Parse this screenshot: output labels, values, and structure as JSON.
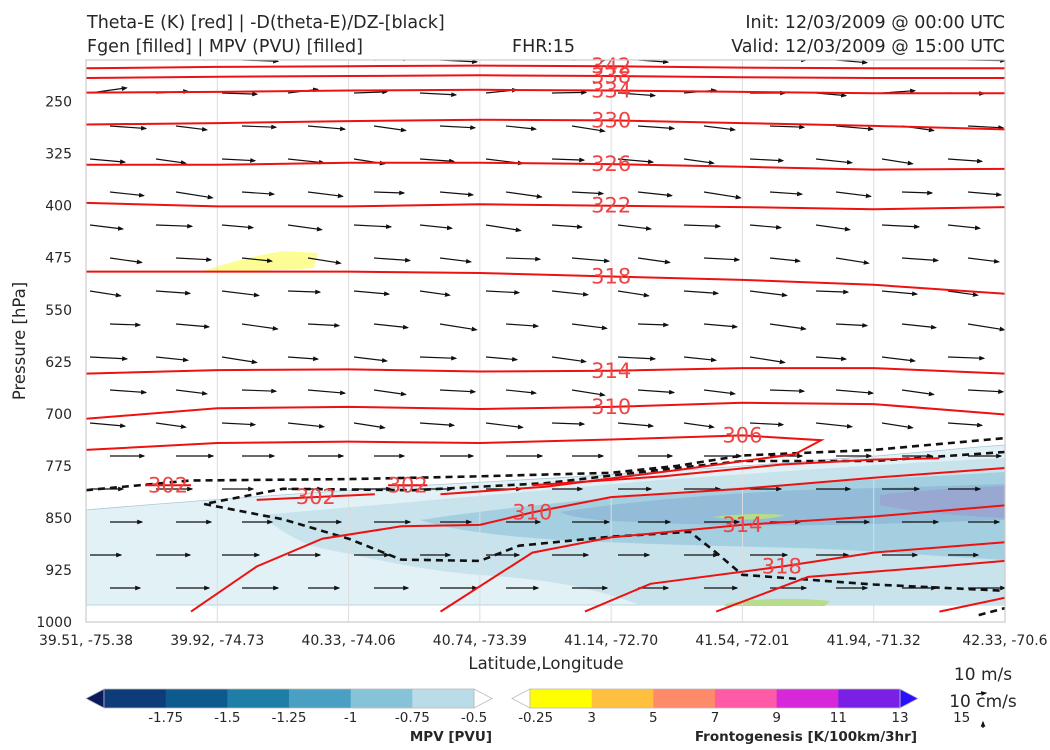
{
  "header": {
    "line1_left": "Theta-E (K) [red] | -D(theta-E)/DZ-[black]",
    "line2_left": "Fgen [filled] | MPV (PVU) [filled]",
    "fhr": "FHR:15",
    "init": "Init: 12/03/2009 @ 00:00 UTC",
    "valid": "Valid: 12/03/2009 @ 15:00 UTC"
  },
  "colors": {
    "theta_e": "#ee1111",
    "stability": "#111111",
    "wind": "#111111",
    "mpv_light": "#c9e3ec",
    "mpv_mid": "#9ccbdc",
    "fgen_yellow": "#fdfd96",
    "fgen_green": "#b6dc8c"
  },
  "chart_data": {
    "type": "cross-section",
    "xlabel": "Latitude,Longitude",
    "ylabel": "Pressure [hPa]",
    "x_ticks": [
      "39.51, -75.38",
      "39.92, -74.73",
      "40.33, -74.06",
      "40.74, -73.39",
      "41.14, -72.70",
      "41.54, -72.01",
      "41.94, -71.32",
      "42.33, -70.6"
    ],
    "y_ticks": [
      250,
      325,
      400,
      475,
      550,
      625,
      700,
      775,
      850,
      925,
      1000
    ],
    "y_range": [
      1000,
      190
    ],
    "x_range": [
      0,
      7
    ],
    "theta_e_contours": [
      {
        "level": 342,
        "label": "342",
        "points": [
          [
            0,
            202
          ],
          [
            1,
            200
          ],
          [
            2,
            199
          ],
          [
            3,
            198
          ],
          [
            4,
            199
          ],
          [
            5,
            201
          ],
          [
            6,
            202
          ],
          [
            7,
            202
          ]
        ]
      },
      {
        "level": 338,
        "label": "338",
        "points": [
          [
            0,
            216
          ],
          [
            1,
            214
          ],
          [
            2,
            213
          ],
          [
            3,
            212
          ],
          [
            4,
            213
          ],
          [
            5,
            215
          ],
          [
            6,
            216
          ],
          [
            7,
            216
          ]
        ]
      },
      {
        "level": 334,
        "label": "334",
        "points": [
          [
            0,
            237
          ],
          [
            1,
            236
          ],
          [
            2,
            234
          ],
          [
            3,
            233
          ],
          [
            4,
            234
          ],
          [
            5,
            236
          ],
          [
            6,
            238
          ],
          [
            7,
            238
          ]
        ]
      },
      {
        "level": 330,
        "label": "330",
        "points": [
          [
            0,
            283
          ],
          [
            1,
            281
          ],
          [
            2,
            278
          ],
          [
            3,
            276
          ],
          [
            4,
            277
          ],
          [
            5,
            281
          ],
          [
            6,
            285
          ],
          [
            7,
            290
          ]
        ]
      },
      {
        "level": 326,
        "label": "326",
        "points": [
          [
            0,
            341
          ],
          [
            1,
            341
          ],
          [
            2,
            338
          ],
          [
            3,
            338
          ],
          [
            4,
            340
          ],
          [
            5,
            344
          ],
          [
            6,
            348
          ],
          [
            7,
            347
          ]
        ]
      },
      {
        "level": 322,
        "label": "322",
        "points": [
          [
            0,
            396
          ],
          [
            1,
            401
          ],
          [
            2,
            401
          ],
          [
            3,
            398
          ],
          [
            4,
            400
          ],
          [
            5,
            402
          ],
          [
            6,
            405
          ],
          [
            7,
            402
          ]
        ]
      },
      {
        "level": 318,
        "label": "318",
        "points": [
          [
            0,
            495
          ],
          [
            1,
            495
          ],
          [
            2,
            495
          ],
          [
            3,
            497
          ],
          [
            4,
            502
          ],
          [
            5,
            507
          ],
          [
            6,
            514
          ],
          [
            7,
            527
          ]
        ]
      },
      {
        "level": 314,
        "label": "314",
        "points": [
          [
            0,
            642
          ],
          [
            1,
            637
          ],
          [
            2,
            636
          ],
          [
            3,
            639
          ],
          [
            4,
            638
          ],
          [
            5,
            634
          ],
          [
            6,
            634
          ],
          [
            7,
            642
          ]
        ]
      },
      {
        "level": 310,
        "label": "310",
        "points": [
          [
            0,
            707
          ],
          [
            1,
            692
          ],
          [
            2,
            690
          ],
          [
            3,
            693
          ],
          [
            4,
            690
          ],
          [
            5,
            684
          ],
          [
            6,
            686
          ],
          [
            7,
            701
          ]
        ]
      },
      {
        "level": 306,
        "label": "306",
        "points": [
          [
            0,
            752
          ],
          [
            1,
            742
          ],
          [
            2,
            740
          ],
          [
            3,
            742
          ],
          [
            4,
            737
          ],
          [
            5,
            731
          ],
          [
            5.6,
            738
          ],
          [
            5.4,
            758
          ],
          [
            4.5,
            781
          ],
          [
            3.5,
            805
          ],
          [
            2.7,
            816
          ]
        ]
      },
      {
        "level": 302,
        "label": "302",
        "points": [
          [
            0.45,
            803
          ],
          [
            0.8,
            803
          ]
        ]
      },
      {
        "level": 302,
        "label": "302",
        "points": [
          [
            1.3,
            824
          ],
          [
            2.2,
            816
          ]
        ]
      },
      {
        "level": 302,
        "label": "302",
        "points": [
          [
            2.3,
            803
          ],
          [
            2.6,
            803
          ]
        ]
      },
      {
        "level": 306,
        "label": "",
        "points": [
          [
            3.4,
            803
          ],
          [
            4.4,
            790
          ],
          [
            5.3,
            773
          ],
          [
            6,
            766
          ],
          [
            6.5,
            764
          ]
        ]
      },
      {
        "level": 310,
        "label": "310",
        "points": [
          [
            0.8,
            985
          ],
          [
            1.3,
            920
          ],
          [
            1.8,
            880
          ],
          [
            2.4,
            862
          ],
          [
            3,
            860
          ],
          [
            3.4,
            842
          ],
          [
            4,
            820
          ],
          [
            5,
            808
          ],
          [
            6,
            792
          ],
          [
            7,
            778
          ]
        ]
      },
      {
        "level": 314,
        "label": "314",
        "points": [
          [
            2.7,
            985
          ],
          [
            3.4,
            900
          ],
          [
            4,
            878
          ],
          [
            5,
            860
          ],
          [
            6,
            848
          ],
          [
            7,
            832
          ]
        ]
      },
      {
        "level": 318,
        "label": "318",
        "points": [
          [
            3.8,
            985
          ],
          [
            4.3,
            945
          ],
          [
            5.3,
            920
          ],
          [
            6,
            900
          ],
          [
            7,
            885
          ]
        ]
      },
      {
        "level": 322,
        "label": "",
        "points": [
          [
            4.8,
            985
          ],
          [
            5.5,
            935
          ],
          [
            6.5,
            920
          ],
          [
            7,
            912
          ]
        ]
      },
      {
        "level": 326,
        "label": "",
        "points": [
          [
            6.5,
            985
          ],
          [
            7,
            965
          ]
        ]
      }
    ],
    "stability_contours": [
      {
        "points": [
          [
            0,
            810
          ],
          [
            0.8,
            796
          ],
          [
            2,
            794
          ],
          [
            3,
            790
          ],
          [
            4,
            785
          ],
          [
            4.5,
            775
          ],
          [
            5,
            760
          ],
          [
            6,
            752
          ],
          [
            7,
            735
          ]
        ]
      },
      {
        "points": [
          [
            7,
            755
          ],
          [
            6,
            768
          ],
          [
            5,
            768
          ],
          [
            4.5,
            778
          ],
          [
            3.5,
            800
          ],
          [
            2.5,
            810
          ],
          [
            1.5,
            808
          ],
          [
            0.9,
            830
          ],
          [
            1.5,
            852
          ],
          [
            2,
            880
          ],
          [
            2.4,
            910
          ],
          [
            3,
            912
          ],
          [
            3.3,
            890
          ],
          [
            4,
            877
          ],
          [
            4.6,
            870
          ],
          [
            4.8,
            900
          ],
          [
            5,
            932
          ],
          [
            6,
            946
          ],
          [
            7,
            955
          ]
        ]
      },
      {
        "points": [
          [
            6.8,
            990
          ],
          [
            7,
            980
          ]
        ]
      }
    ],
    "mpv_fill": {
      "levels": [
        -1.75,
        -1.5,
        -1.25,
        -1.0,
        -0.75,
        -0.5,
        -0.25
      ],
      "label": "MPV [PVU]",
      "colors": [
        "#0a1a5c",
        "#0d3c78",
        "#0c5a8e",
        "#1f7ea6",
        "#4aa0c2",
        "#86c2d8",
        "#b9dce8",
        "#ffffff"
      ]
    },
    "fgen_fill": {
      "levels": [
        3,
        5,
        7,
        9,
        11,
        13,
        15
      ],
      "label": "Frontogenesis [K/100km/3hr]",
      "colors": [
        "#ffffff",
        "#ffff00",
        "#ffc040",
        "#ff8a6a",
        "#ff5aa6",
        "#d628d8",
        "#7a20e6",
        "#2a10ff"
      ]
    },
    "wind_key": {
      "label1": "10 m/s",
      "label2": "10 cm/s"
    }
  }
}
